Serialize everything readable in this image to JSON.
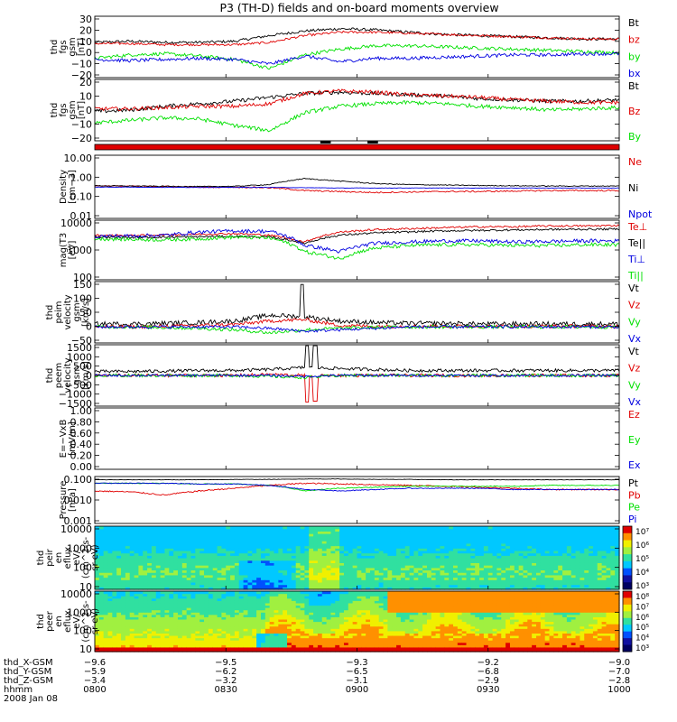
{
  "title": "P3 (TH-D) fields and on-board moments overview",
  "colors": {
    "black": "#000000",
    "red": "#e00000",
    "green": "#00e000",
    "blue": "#0000e0"
  },
  "chart_data": [
    {
      "type": "line",
      "ylabel": [
        "thd",
        "fgs",
        "gsm",
        "[nT]"
      ],
      "yticks": [
        "30",
        "20",
        "10",
        "0",
        "−10",
        "−20"
      ],
      "ylim": [
        -22,
        32
      ],
      "series": [
        {
          "name": "Bt",
          "color": "black",
          "trend": [
            9,
            10,
            9,
            9,
            10,
            15,
            19,
            21,
            20,
            18,
            16,
            15,
            14,
            13,
            12,
            12
          ],
          "noise": 1.2,
          "spikes": []
        },
        {
          "name": "bz",
          "color": "red",
          "trend": [
            8,
            8,
            7,
            7,
            7,
            9,
            15,
            18,
            18,
            17,
            16,
            15,
            14,
            13,
            12,
            12
          ],
          "noise": 1,
          "spikes": []
        },
        {
          "name": "by",
          "color": "green",
          "trend": [
            -5,
            -2,
            -1,
            -3,
            -6,
            -14,
            -2,
            3,
            6,
            6,
            5,
            4,
            3,
            2,
            1,
            0
          ],
          "noise": 1.5,
          "spikes": []
        },
        {
          "name": "bx",
          "color": "blue",
          "trend": [
            -6,
            -7,
            -6,
            -5,
            -6,
            -10,
            -3,
            -8,
            -5,
            -5,
            -4,
            -3,
            -2,
            -2,
            -1,
            -1
          ],
          "noise": 1.5,
          "spikes": []
        }
      ]
    },
    {
      "type": "line",
      "ylabel": [
        "thd",
        "fgs",
        "gsm",
        "[nT]"
      ],
      "yticks": [
        "20",
        "10",
        "0",
        "−10",
        "−20"
      ],
      "ylim": [
        -26,
        22
      ],
      "series": [
        {
          "name": "Bt",
          "color": "black",
          "trend": [
            -3,
            -2,
            1,
            3,
            5,
            8,
            11,
            12,
            11,
            10,
            9,
            7,
            6,
            5,
            5,
            6
          ],
          "noise": 1.5,
          "spikes": []
        },
        {
          "name": "Bz",
          "color": "red",
          "trend": [
            -1,
            -1,
            0,
            1,
            1,
            3,
            11,
            13,
            12,
            10,
            9,
            8,
            6,
            5,
            4,
            4
          ],
          "noise": 1.5,
          "spikes": []
        },
        {
          "name": "By",
          "color": "green",
          "trend": [
            -12,
            -10,
            -8,
            -9,
            -14,
            -18,
            -4,
            1,
            3,
            4,
            3,
            1,
            0,
            -2,
            -1,
            0
          ],
          "noise": 1.5,
          "spikes": []
        }
      ]
    },
    {
      "type": "line",
      "log": true,
      "ylabel": [
        "Density",
        "[cm−3]"
      ],
      "yticks": [
        "10.00",
        "1.00",
        "0.10",
        "0.01"
      ],
      "ylim": [
        0.008,
        12
      ],
      "series": [
        {
          "name": "Ne",
          "color": "red",
          "trend": [
            0.35,
            0.33,
            0.32,
            0.3,
            0.3,
            0.28,
            0.2,
            0.18,
            0.16,
            0.17,
            0.18,
            0.18,
            0.19,
            0.2,
            0.2,
            0.2
          ],
          "noise": 0.08,
          "spikes": []
        },
        {
          "name": "Ni",
          "color": "black",
          "trend": [
            0.35,
            0.34,
            0.33,
            0.32,
            0.33,
            0.4,
            0.8,
            0.6,
            0.45,
            0.4,
            0.38,
            0.36,
            0.35,
            0.34,
            0.34,
            0.34
          ],
          "noise": 0.05,
          "spikes": []
        },
        {
          "name": "Npot",
          "color": "blue",
          "trend": [
            0.3,
            0.3,
            0.29,
            0.29,
            0.29,
            0.29,
            0.28,
            0.27,
            0.27,
            0.27,
            0.27,
            0.27,
            0.27,
            0.27,
            0.27,
            0.27
          ],
          "noise": 0.02,
          "spikes": []
        }
      ]
    },
    {
      "type": "line",
      "log": true,
      "ylabel": [
        "mag(T3",
        "[eV]"
      ],
      "yticks": [
        "10000",
        "1000",
        "100"
      ],
      "ylim": [
        90,
        12000
      ],
      "series": [
        {
          "name": "Te⊥",
          "color": "red",
          "trend": [
            3500,
            3400,
            3600,
            3800,
            4000,
            3500,
            2000,
            4500,
            5500,
            6000,
            6500,
            7000,
            7000,
            7500,
            7500,
            7800
          ],
          "noise": 0.08,
          "spikes": []
        },
        {
          "name": "Te||",
          "color": "black",
          "trend": [
            3000,
            2900,
            3000,
            3100,
            3200,
            3000,
            1800,
            3500,
            4200,
            4600,
            5000,
            5200,
            5400,
            5600,
            5700,
            5800
          ],
          "noise": 0.08,
          "spikes": []
        },
        {
          "name": "Ti⊥",
          "color": "blue",
          "trend": [
            3200,
            3300,
            3500,
            4500,
            5000,
            4800,
            1500,
            900,
            1800,
            2000,
            2200,
            2200,
            2000,
            2100,
            2200,
            2200
          ],
          "noise": 0.15,
          "spikes": []
        },
        {
          "name": "Ti||",
          "color": "green",
          "trend": [
            2600,
            2500,
            2400,
            2600,
            3000,
            2800,
            900,
            500,
            1200,
            1500,
            1600,
            1600,
            1500,
            1500,
            1600,
            1600
          ],
          "noise": 0.15,
          "spikes": []
        }
      ]
    },
    {
      "type": "line",
      "ylabel": [
        "thd",
        "peim",
        "velocity",
        "gsm",
        "[km/s]"
      ],
      "yticks": [
        "150",
        "100",
        "50",
        "0",
        "−50"
      ],
      "ylim": [
        -55,
        155
      ],
      "series": [
        {
          "name": "Vt",
          "color": "black",
          "trend": [
            10,
            10,
            12,
            15,
            20,
            40,
            35,
            20,
            15,
            12,
            12,
            10,
            10,
            10,
            10,
            10
          ],
          "noise": 8,
          "spikes": [
            [
              0.395,
              145
            ]
          ]
        },
        {
          "name": "Vz",
          "color": "red",
          "trend": [
            0,
            0,
            2,
            5,
            8,
            20,
            25,
            5,
            2,
            2,
            2,
            2,
            2,
            2,
            2,
            2
          ],
          "noise": 6,
          "spikes": []
        },
        {
          "name": "Vy",
          "color": "green",
          "trend": [
            0,
            0,
            -2,
            -5,
            -10,
            -20,
            -10,
            -5,
            -2,
            0,
            0,
            0,
            0,
            0,
            0,
            0
          ],
          "noise": 6,
          "spikes": []
        },
        {
          "name": "Vx",
          "color": "blue",
          "trend": [
            0,
            0,
            0,
            0,
            0,
            -5,
            -15,
            -10,
            -5,
            0,
            0,
            0,
            0,
            0,
            0,
            0
          ],
          "noise": 5,
          "spikes": []
        }
      ]
    },
    {
      "type": "line",
      "ylabel": [
        "thd",
        "peem",
        "velocity",
        "gsm",
        "[km/s]"
      ],
      "yticks": [
        "1500",
        "1000",
        "500",
        "0",
        "−500",
        "−1000",
        "−1500"
      ],
      "ylim": [
        -1550,
        1550
      ],
      "series": [
        {
          "name": "Vt",
          "color": "black",
          "trend": [
            200,
            200,
            220,
            250,
            250,
            300,
            400,
            350,
            300,
            250,
            250,
            250,
            250,
            250,
            250,
            250
          ],
          "noise": 80,
          "spikes": [
            [
              0.405,
              1500
            ],
            [
              0.42,
              1500
            ]
          ]
        },
        {
          "name": "Vz",
          "color": "red",
          "trend": [
            0,
            0,
            0,
            0,
            0,
            50,
            0,
            0,
            0,
            0,
            0,
            0,
            0,
            0,
            0,
            0
          ],
          "noise": 80,
          "spikes": [
            [
              0.405,
              -1350
            ],
            [
              0.42,
              -1300
            ]
          ]
        },
        {
          "name": "Vy",
          "color": "green",
          "trend": [
            0,
            0,
            0,
            0,
            0,
            -50,
            -100,
            0,
            0,
            0,
            0,
            0,
            0,
            0,
            0,
            0
          ],
          "noise": 80,
          "spikes": []
        },
        {
          "name": "Vx",
          "color": "blue",
          "trend": [
            0,
            0,
            0,
            0,
            0,
            0,
            -50,
            0,
            0,
            0,
            0,
            0,
            0,
            0,
            0,
            0
          ],
          "noise": 60,
          "spikes": []
        }
      ]
    },
    {
      "type": "line",
      "ylabel": [
        "E=−VxB",
        "[mV/m]"
      ],
      "yticks": [
        "1.00",
        "0.80",
        "0.60",
        "0.40",
        "0.20",
        "0.00"
      ],
      "ylim": [
        -0.03,
        1.03
      ],
      "series": [
        {
          "name": "Ez",
          "color": "red",
          "trend": [],
          "noise": 0,
          "spikes": []
        },
        {
          "name": "Ey",
          "color": "green",
          "trend": [],
          "noise": 0,
          "spikes": []
        },
        {
          "name": "Ex",
          "color": "blue",
          "trend": [],
          "noise": 0,
          "spikes": []
        }
      ]
    },
    {
      "type": "line",
      "log": true,
      "ylabel": [
        "Pressure",
        "[nPa]"
      ],
      "yticks": [
        "0.100",
        "0.010",
        "0.001"
      ],
      "ylim": [
        0.0009,
        0.3
      ],
      "series": [
        {
          "name": "Pt",
          "color": "black",
          "trend": [
            0.2,
            0.2,
            0.2,
            0.2,
            0.21,
            0.21,
            0.22,
            0.22,
            0.21,
            0.21,
            0.2,
            0.2,
            0.2,
            0.2,
            0.2,
            0.2
          ],
          "noise": 0.02,
          "spikes": []
        },
        {
          "name": "Pb",
          "color": "red",
          "trend": [
            0.05,
            0.045,
            0.03,
            0.05,
            0.07,
            0.1,
            0.13,
            0.12,
            0.11,
            0.1,
            0.09,
            0.08,
            0.07,
            0.06,
            0.06,
            0.06
          ],
          "noise": 0.08,
          "spikes": []
        },
        {
          "name": "Pe",
          "color": "green",
          "trend": [
            0.13,
            0.13,
            0.13,
            0.12,
            0.12,
            0.1,
            0.05,
            0.07,
            0.08,
            0.09,
            0.09,
            0.09,
            0.09,
            0.1,
            0.1,
            0.1
          ],
          "noise": 0.05,
          "spikes": []
        },
        {
          "name": "Pi",
          "color": "blue",
          "trend": [
            0.13,
            0.13,
            0.13,
            0.12,
            0.12,
            0.1,
            0.06,
            0.05,
            0.06,
            0.07,
            0.07,
            0.07,
            0.06,
            0.06,
            0.06,
            0.06
          ],
          "noise": 0.05,
          "spikes": []
        }
      ]
    },
    {
      "type": "heatmap",
      "ylabel": [
        "thd",
        "peir",
        "en",
        "eflux",
        "eV/",
        "(cm^2-s-",
        "sr-eV)"
      ],
      "yticks": [
        "10000",
        "1000",
        "100",
        "10"
      ],
      "ylim": [
        7,
        20000
      ],
      "colorbar": [
        "10⁷",
        "10⁶",
        "10⁵",
        "10⁴",
        "10³"
      ]
    },
    {
      "type": "heatmap",
      "ylabel": [
        "thd",
        "peer",
        "en",
        "eflux",
        "eV/",
        "(cm^2-s-",
        "sr-eV)"
      ],
      "yticks": [
        "10000",
        "1000",
        "100",
        "10"
      ],
      "ylim": [
        7,
        20000
      ],
      "colorbar": [
        "10⁸",
        "10⁷",
        "10⁶",
        "10⁵",
        "10⁴",
        "10³"
      ]
    }
  ],
  "x_axis": {
    "rows": [
      {
        "label": "thd_X-GSM",
        "values": [
          "−9.6",
          "−9.5",
          "−9.3",
          "−9.2",
          "−9.0"
        ]
      },
      {
        "label": "thd_Y-GSM",
        "values": [
          "−5.9",
          "−6.2",
          "−6.5",
          "−6.8",
          "−7.0"
        ]
      },
      {
        "label": "thd_Z-GSM",
        "values": [
          "−3.4",
          "−3.2",
          "−3.1",
          "−2.9",
          "−2.8"
        ]
      },
      {
        "label": "hhmm",
        "values": [
          "0800",
          "0830",
          "0900",
          "0930",
          "1000"
        ]
      }
    ],
    "date": "2008 Jan 08"
  }
}
